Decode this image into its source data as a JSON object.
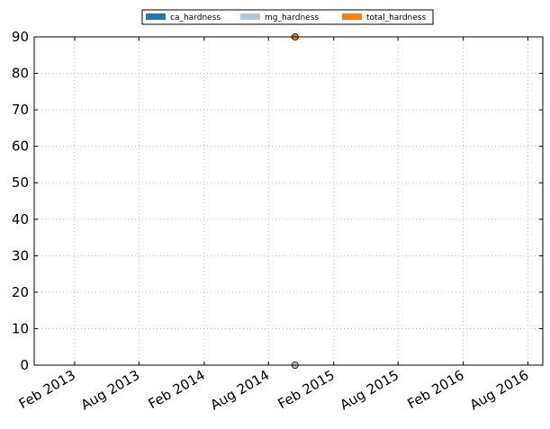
{
  "chart_data": {
    "type": "scatter",
    "x_axis": "date",
    "x_ticks": [
      "Feb 2013",
      "Aug 2013",
      "Feb 2014",
      "Aug 2014",
      "Feb 2015",
      "Aug 2015",
      "Feb 2016",
      "Aug 2016"
    ],
    "xlim": [
      "2012-10-10",
      "2016-09-12"
    ],
    "ylim": [
      0,
      90
    ],
    "y_ticks": [
      0,
      10,
      20,
      30,
      40,
      50,
      60,
      70,
      80,
      90
    ],
    "grid": true,
    "legend_position": "top-center",
    "series": [
      {
        "name": "ca_hardness",
        "color": "#1f77b4",
        "points": []
      },
      {
        "name": "mg_hardness",
        "color": "#aec7e8",
        "points": [
          {
            "x": "2014-10-15",
            "y": 0
          }
        ]
      },
      {
        "name": "total_hardness",
        "color": "#ff7f0e",
        "points": [
          {
            "x": "2014-10-15",
            "y": 90
          }
        ]
      }
    ],
    "title": "",
    "xlabel": "",
    "ylabel": ""
  }
}
